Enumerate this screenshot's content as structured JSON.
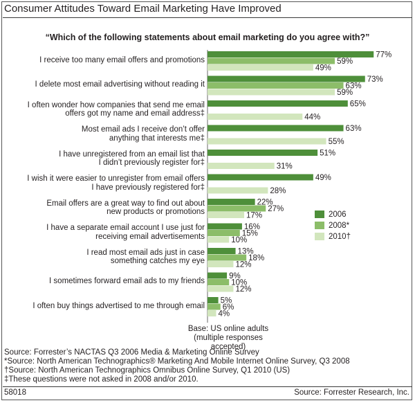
{
  "title": "Consumer Attitudes Toward Email Marketing Have Improved",
  "figure_id": "58018",
  "credit": "Source: Forrester Research, Inc.",
  "colors": {
    "2006": "#4e8f3a",
    "2008*": "#8cbd69",
    "2010†": "#d2e6bd"
  },
  "chart_data": {
    "type": "bar",
    "orientation": "horizontal",
    "title": "“Which of the following statements about email marketing do you agree with?”",
    "categories": [
      [
        "I receive too many email offers and promotions"
      ],
      [
        "I delete most email advertising without reading it"
      ],
      [
        "I often wonder how companies that send me email",
        "offers got my name and email address‡"
      ],
      [
        "Most email ads I receive don’t offer",
        "anything that interests me‡"
      ],
      [
        "I have unregistered from an email list that",
        "I didn’t previously register for‡"
      ],
      [
        "I wish it were easier to unregister from email offers",
        "I have previously registered for‡"
      ],
      [
        "Email offers are a great way to find out about",
        "new products or promotions"
      ],
      [
        "I have a separate email account I use just for",
        "receiving email advertisements"
      ],
      [
        "I read most email ads just in case",
        "something catches my eye"
      ],
      [
        "I sometimes forward email ads to my friends"
      ],
      [
        "I often buy things advertised to me through email"
      ]
    ],
    "series": [
      {
        "name": "2006",
        "values": [
          77,
          73,
          65,
          63,
          51,
          49,
          22,
          16,
          13,
          9,
          5
        ]
      },
      {
        "name": "2008*",
        "values": [
          59,
          63,
          null,
          null,
          null,
          null,
          27,
          15,
          18,
          10,
          6
        ]
      },
      {
        "name": "2010†",
        "values": [
          49,
          59,
          44,
          55,
          31,
          28,
          17,
          10,
          12,
          12,
          4
        ]
      }
    ],
    "value_suffix": "%",
    "xlim": [
      0,
      80
    ],
    "legend_position": "right",
    "grid": false
  },
  "base_note": [
    "Base: US online adults",
    "(multiple responses accepted)"
  ],
  "sources": [
    "Source: Forrester’s NACTAS Q3 2006 Media & Marketing Online Survey",
    "*Source: North American Technographics® Marketing And Mobile Internet Online Survey, Q3 2008",
    "†Source: North American Technographics Omnibus Online Survey, Q1 2010 (US)",
    "‡These questions were not asked in 2008 and/or 2010."
  ]
}
